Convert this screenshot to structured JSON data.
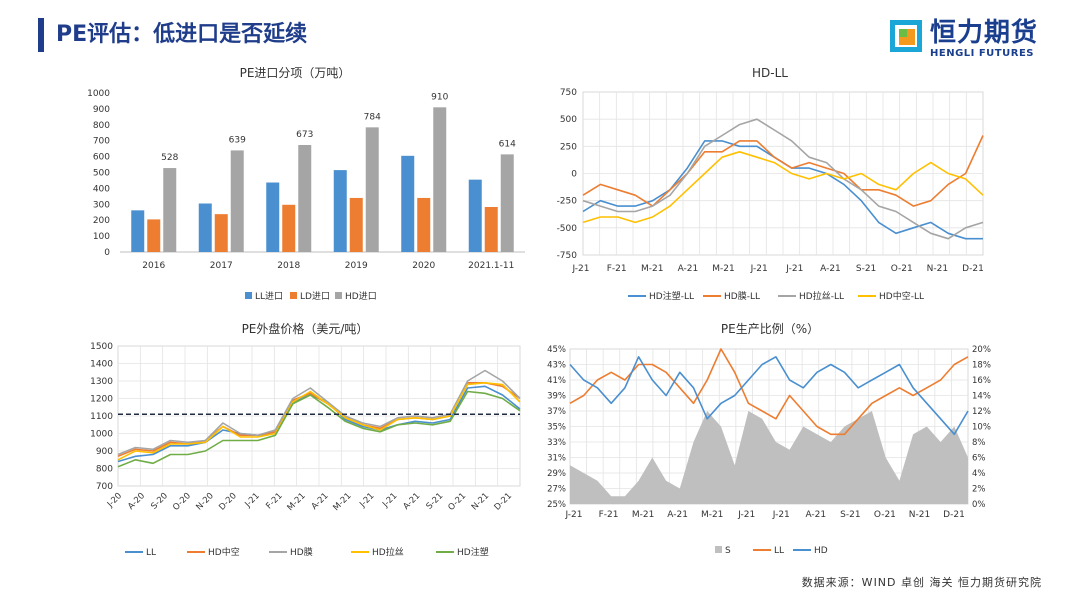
{
  "page": {
    "title": "PE评估：低进口是否延续",
    "logo": {
      "cn": "恒力期货",
      "en": "HENGLI FUTURES"
    },
    "source": "数据来源：WIND 卓创 海关 恒力期货研究院"
  },
  "colors": {
    "blue": "#4a8fcf",
    "orange": "#ed7d31",
    "gray": "#a5a5a5",
    "yellow": "#ffc000",
    "green": "#70ad47",
    "navy": "#1f3d8a"
  },
  "chart_data": [
    {
      "type": "bar",
      "title": "PE进口分项（万吨）",
      "categories": [
        "2016",
        "2017",
        "2018",
        "2019",
        "2020",
        "2021.1-11"
      ],
      "series": [
        {
          "name": "LL进口",
          "color": "#4a8fcf",
          "values": [
            262,
            305,
            437,
            515,
            605,
            455
          ]
        },
        {
          "name": "LD进口",
          "color": "#ed7d31",
          "values": [
            205,
            238,
            297,
            340,
            340,
            283
          ]
        },
        {
          "name": "HD进口",
          "color": "#a5a5a5",
          "values": [
            528,
            639,
            673,
            784,
            910,
            614
          ]
        }
      ],
      "data_labels": {
        "series": "HD进口",
        "values": [
          "528",
          "639",
          "673",
          "784",
          "910",
          "614"
        ]
      },
      "yticks": [
        "0",
        "100",
        "200",
        "300",
        "400",
        "500",
        "600",
        "700",
        "800",
        "900",
        "1000"
      ],
      "ylim": [
        0,
        1000
      ],
      "legend": "bottom"
    },
    {
      "type": "line",
      "title": "HD-LL",
      "x_labels": [
        "J-21",
        "F-21",
        "M-21",
        "A-21",
        "M-21",
        "J-21",
        "J-21",
        "A-21",
        "S-21",
        "O-21",
        "N-21",
        "D-21"
      ],
      "yticks": [
        "750",
        "500",
        "250",
        "0",
        "-250",
        "-500",
        "-750"
      ],
      "ylim": [
        -750,
        750
      ],
      "grid": true,
      "legend": "bottom",
      "series": [
        {
          "name": "HD注塑-LL",
          "color": "#4a8fcf",
          "values": [
            -350,
            -250,
            -300,
            -300,
            -250,
            -150,
            50,
            300,
            300,
            250,
            250,
            150,
            50,
            50,
            0,
            -100,
            -250,
            -450,
            -550,
            -500,
            -450,
            -550,
            -600,
            -600
          ]
        },
        {
          "name": "HD膜-LL",
          "color": "#ed7d31",
          "values": [
            -200,
            -100,
            -150,
            -200,
            -300,
            -150,
            0,
            200,
            200,
            300,
            300,
            150,
            50,
            100,
            50,
            0,
            -150,
            -150,
            -200,
            -300,
            -250,
            -100,
            0,
            350
          ]
        },
        {
          "name": "HD拉丝-LL",
          "color": "#a5a5a5",
          "values": [
            -250,
            -300,
            -350,
            -350,
            -300,
            -200,
            0,
            250,
            350,
            450,
            500,
            400,
            300,
            150,
            100,
            -50,
            -150,
            -300,
            -350,
            -450,
            -550,
            -600,
            -500,
            -450
          ]
        },
        {
          "name": "HD中空-LL",
          "color": "#ffc000",
          "values": [
            -450,
            -400,
            -400,
            -450,
            -400,
            -300,
            -150,
            0,
            150,
            200,
            150,
            100,
            0,
            -50,
            0,
            -50,
            0,
            -100,
            -150,
            0,
            100,
            0,
            -50,
            -200
          ]
        }
      ]
    },
    {
      "type": "line",
      "title": "PE外盘价格（美元/吨）",
      "x_labels": [
        "J-20",
        "A-20",
        "S-20",
        "O-20",
        "N-20",
        "D-20",
        "J-21",
        "F-21",
        "M-21",
        "A-21",
        "M-21",
        "J-21",
        "J-21",
        "A-21",
        "S-21",
        "O-21",
        "N-21",
        "D-21"
      ],
      "yticks": [
        "1500",
        "1400",
        "1300",
        "1200",
        "1100",
        "1000",
        "900",
        "800",
        "700"
      ],
      "ylim": [
        700,
        1500
      ],
      "reference_line": 1110,
      "grid": true,
      "legend": "bottom",
      "series": [
        {
          "name": "LL",
          "color": "#4a8fcf",
          "values": [
            840,
            870,
            880,
            930,
            930,
            950,
            1020,
            1000,
            990,
            1000,
            1180,
            1220,
            1180,
            1080,
            1040,
            1020,
            1050,
            1070,
            1060,
            1080,
            1260,
            1270,
            1220,
            1140
          ]
        },
        {
          "name": "HD中空",
          "color": "#ed7d31",
          "values": [
            870,
            910,
            900,
            950,
            940,
            960,
            1040,
            990,
            990,
            1010,
            1190,
            1230,
            1170,
            1090,
            1050,
            1030,
            1080,
            1090,
            1080,
            1100,
            1290,
            1290,
            1270,
            1200
          ]
        },
        {
          "name": "HD膜",
          "color": "#a5a5a5",
          "values": [
            880,
            920,
            910,
            960,
            950,
            960,
            1060,
            1000,
            990,
            1020,
            1200,
            1260,
            1180,
            1100,
            1060,
            1040,
            1090,
            1100,
            1090,
            1110,
            1300,
            1360,
            1300,
            1200
          ]
        },
        {
          "name": "HD拉丝",
          "color": "#ffc000",
          "values": [
            850,
            900,
            890,
            940,
            940,
            950,
            1040,
            980,
            980,
            1000,
            1180,
            1240,
            1170,
            1090,
            1050,
            1020,
            1080,
            1090,
            1080,
            1100,
            1280,
            1290,
            1280,
            1180
          ]
        },
        {
          "name": "HD注塑",
          "color": "#70ad47",
          "values": [
            810,
            850,
            830,
            880,
            880,
            900,
            960,
            960,
            960,
            990,
            1170,
            1220,
            1150,
            1070,
            1030,
            1010,
            1050,
            1060,
            1050,
            1070,
            1240,
            1230,
            1200,
            1130
          ]
        }
      ]
    },
    {
      "type": "line",
      "title": "PE生产比例（%）",
      "x_labels": [
        "J-21",
        "F-21",
        "M-21",
        "A-21",
        "M-21",
        "J-21",
        "J-21",
        "A-21",
        "S-21",
        "O-21",
        "N-21",
        "D-21"
      ],
      "yticks_left": [
        "45%",
        "43%",
        "41%",
        "39%",
        "37%",
        "35%",
        "33%",
        "31%",
        "29%",
        "27%",
        "25%"
      ],
      "yticks_right": [
        "20%",
        "18%",
        "16%",
        "14%",
        "12%",
        "10%",
        "8%",
        "6%",
        "4%",
        "2%",
        "0%"
      ],
      "ylim_left": [
        25,
        45
      ],
      "ylim_right": [
        0,
        20
      ],
      "grid": true,
      "legend": "bottom",
      "series": [
        {
          "name": "S",
          "color": "#bfbfbf",
          "axis": "right",
          "kind": "area",
          "values": [
            5,
            4,
            3,
            1,
            1,
            3,
            6,
            3,
            2,
            8,
            12,
            10,
            5,
            12,
            11,
            8,
            7,
            10,
            9,
            8,
            10,
            11,
            12,
            6,
            3,
            9,
            10,
            8,
            10,
            6
          ]
        },
        {
          "name": "LL",
          "color": "#ed7d31",
          "axis": "left",
          "values": [
            38,
            39,
            41,
            42,
            41,
            43,
            43,
            42,
            40,
            38,
            41,
            45,
            42,
            38,
            37,
            36,
            39,
            37,
            35,
            34,
            34,
            36,
            38,
            39,
            40,
            39,
            40,
            41,
            43,
            44
          ]
        },
        {
          "name": "HD",
          "color": "#4a8fcf",
          "axis": "left",
          "values": [
            43,
            41,
            40,
            38,
            40,
            44,
            41,
            39,
            42,
            40,
            36,
            38,
            39,
            41,
            43,
            44,
            41,
            40,
            42,
            43,
            42,
            40,
            41,
            42,
            43,
            40,
            38,
            36,
            34,
            37
          ]
        }
      ]
    }
  ]
}
